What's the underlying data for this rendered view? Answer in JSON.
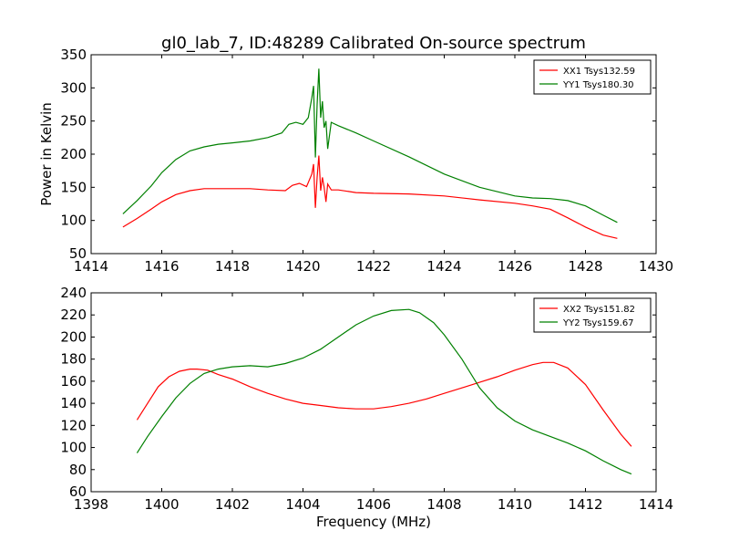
{
  "figure": {
    "title": "gl0_lab_7, ID:48289 Calibrated On-source spectrum",
    "shared_ylabel": "Power in Kelvin",
    "shared_xlabel": "Frequency (MHz)"
  },
  "chart_data": [
    {
      "type": "line",
      "title": "gl0_lab_7, ID:48289 Calibrated On-source spectrum",
      "ylabel": "Power in Kelvin",
      "xlabel": "",
      "xlim": [
        1414,
        1430
      ],
      "ylim": [
        50,
        350
      ],
      "xticks": [
        1414,
        1416,
        1418,
        1420,
        1422,
        1424,
        1426,
        1428,
        1430
      ],
      "yticks": [
        50,
        100,
        150,
        200,
        250,
        300,
        350
      ],
      "grid": false,
      "legend": "top-right",
      "series": [
        {
          "name": "XX1 Tsys132.59",
          "color": "#ff0000",
          "x": [
            1414.9,
            1415.3,
            1415.7,
            1416.0,
            1416.4,
            1416.8,
            1417.2,
            1417.6,
            1418.0,
            1418.5,
            1419.0,
            1419.5,
            1419.7,
            1419.9,
            1420.1,
            1420.25,
            1420.3,
            1420.35,
            1420.4,
            1420.45,
            1420.5,
            1420.55,
            1420.6,
            1420.65,
            1420.7,
            1420.8,
            1421.0,
            1421.5,
            1422.0,
            1423.0,
            1424.0,
            1425.0,
            1426.0,
            1426.5,
            1427.0,
            1427.5,
            1428.0,
            1428.5,
            1428.9
          ],
          "y": [
            90,
            103,
            117,
            128,
            139,
            145,
            148,
            148,
            148,
            148,
            146,
            145,
            153,
            156,
            151,
            170,
            185,
            119,
            165,
            198,
            145,
            165,
            150,
            128,
            155,
            146,
            146,
            142,
            141,
            140,
            137,
            131,
            126,
            122,
            117,
            104,
            90,
            78,
            73
          ]
        },
        {
          "name": "YY1 Tsys180.30",
          "color": "#008000",
          "x": [
            1414.9,
            1415.3,
            1415.7,
            1416.0,
            1416.4,
            1416.8,
            1417.2,
            1417.6,
            1418.0,
            1418.5,
            1419.0,
            1419.4,
            1419.6,
            1419.8,
            1420.0,
            1420.15,
            1420.25,
            1420.3,
            1420.35,
            1420.4,
            1420.45,
            1420.5,
            1420.55,
            1420.6,
            1420.65,
            1420.7,
            1420.8,
            1421.0,
            1421.5,
            1422.0,
            1423.0,
            1424.0,
            1425.0,
            1426.0,
            1426.5,
            1427.0,
            1427.5,
            1428.0,
            1428.5,
            1428.9
          ],
          "y": [
            110,
            130,
            152,
            172,
            192,
            205,
            211,
            215,
            217,
            220,
            225,
            232,
            245,
            248,
            245,
            255,
            285,
            303,
            195,
            275,
            329,
            255,
            280,
            240,
            250,
            208,
            248,
            243,
            232,
            220,
            196,
            170,
            150,
            137,
            134,
            133,
            130,
            122,
            108,
            97
          ]
        }
      ]
    },
    {
      "type": "line",
      "title": "",
      "ylabel": "",
      "xlabel": "Frequency (MHz)",
      "xlim": [
        1398,
        1414
      ],
      "ylim": [
        60,
        240
      ],
      "xticks": [
        1398,
        1400,
        1402,
        1404,
        1406,
        1408,
        1410,
        1412,
        1414
      ],
      "yticks": [
        60,
        80,
        100,
        120,
        140,
        160,
        180,
        200,
        220,
        240
      ],
      "grid": false,
      "legend": "top-right",
      "series": [
        {
          "name": "XX2 Tsys151.82",
          "color": "#ff0000",
          "x": [
            1399.3,
            1399.6,
            1399.9,
            1400.2,
            1400.5,
            1400.8,
            1401.0,
            1401.3,
            1401.6,
            1402.0,
            1402.5,
            1403.0,
            1403.5,
            1404.0,
            1404.5,
            1405.0,
            1405.5,
            1406.0,
            1406.5,
            1407.0,
            1407.5,
            1408.0,
            1408.5,
            1409.0,
            1409.5,
            1410.0,
            1410.5,
            1410.8,
            1411.1,
            1411.5,
            1412.0,
            1412.5,
            1413.0,
            1413.3
          ],
          "y": [
            125,
            140,
            155,
            164,
            169,
            171,
            171,
            170,
            166,
            162,
            155,
            149,
            144,
            140,
            138,
            136,
            135,
            135,
            137,
            140,
            144,
            149,
            154,
            159,
            164,
            170,
            175,
            177,
            177,
            172,
            157,
            134,
            112,
            101
          ]
        },
        {
          "name": "YY2 Tsys159.67",
          "color": "#008000",
          "x": [
            1399.3,
            1399.6,
            1400.0,
            1400.4,
            1400.8,
            1401.2,
            1401.6,
            1402.0,
            1402.5,
            1403.0,
            1403.5,
            1404.0,
            1404.5,
            1405.0,
            1405.5,
            1406.0,
            1406.5,
            1407.0,
            1407.3,
            1407.7,
            1408.0,
            1408.5,
            1409.0,
            1409.5,
            1410.0,
            1410.5,
            1411.0,
            1411.5,
            1412.0,
            1412.5,
            1413.0,
            1413.3
          ],
          "y": [
            95,
            110,
            128,
            145,
            158,
            167,
            171,
            173,
            174,
            173,
            176,
            181,
            189,
            200,
            211,
            219,
            224,
            225,
            222,
            213,
            202,
            180,
            154,
            136,
            124,
            116,
            110,
            104,
            97,
            88,
            80,
            76
          ]
        }
      ]
    }
  ]
}
